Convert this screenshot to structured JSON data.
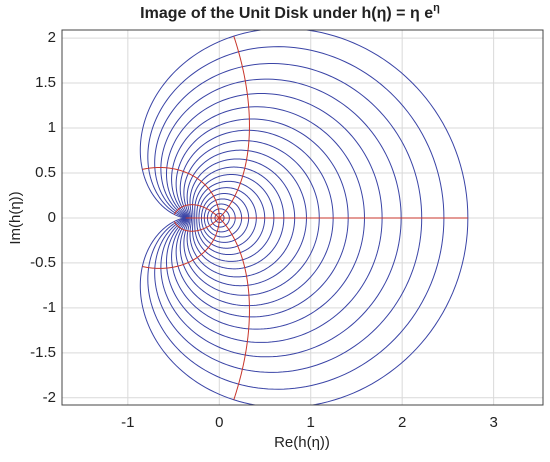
{
  "chart_data": {
    "type": "complex-map",
    "title": "Image of the Unit Disk under h(η) = η e",
    "title_superscript": "η",
    "xlabel": "Re(h(η))",
    "ylabel": "Im(h(η))",
    "xlim": [
      -1.72,
      3.54
    ],
    "ylim": [
      -2.08,
      2.09
    ],
    "xticks": [
      -1,
      0,
      1,
      2,
      3
    ],
    "yticks": [
      -2,
      -1.5,
      -1,
      -0.5,
      0,
      0.5,
      1,
      1.5,
      2
    ],
    "grid": true,
    "circles": {
      "color": "#3a44a6",
      "radii": [
        0.05,
        0.1,
        0.15,
        0.2,
        0.25,
        0.3,
        0.35,
        0.4,
        0.45,
        0.5,
        0.55,
        0.6,
        0.65,
        0.7,
        0.75,
        0.8,
        0.85,
        0.9,
        0.95,
        1
      ]
    },
    "rays": {
      "color": "#c8352b",
      "angles_deg": [
        0,
        45,
        90,
        135,
        180,
        225,
        270,
        315
      ]
    }
  }
}
